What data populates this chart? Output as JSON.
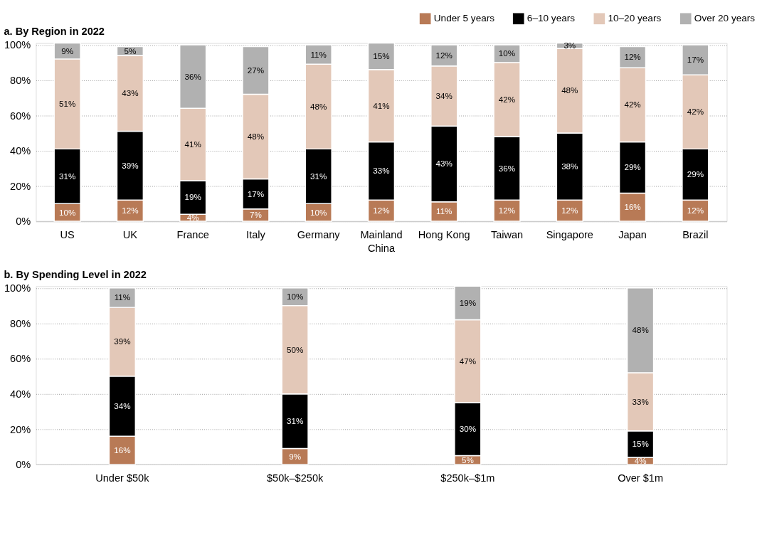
{
  "chart_data": [
    {
      "type": "bar",
      "title": "a. By Region in 2022",
      "stacked": true,
      "legend": "top right",
      "grid": "y",
      "categories": [
        "US",
        "UK",
        "France",
        "Italy",
        "Germany",
        "Mainland China",
        "Hong Kong",
        "Taiwan",
        "Singapore",
        "Japan",
        "Brazil"
      ],
      "ylim": [
        0,
        101
      ],
      "yticks": [
        {
          "value": 0,
          "label": "0%"
        },
        {
          "value": 20,
          "label": "20%"
        },
        {
          "value": 40,
          "label": "40%"
        },
        {
          "value": 60,
          "label": "60%"
        },
        {
          "value": 80,
          "label": "80%"
        },
        {
          "value": 100,
          "label": "100%"
        }
      ],
      "series": [
        {
          "name": "Under 5 years",
          "color": "#b87a56",
          "values": [
            10,
            12,
            4,
            7,
            10,
            12,
            11,
            12,
            12,
            16,
            12
          ],
          "value_labels": [
            "10%",
            "12%",
            "4%",
            "7%",
            "10%",
            "12%",
            "11%",
            "12%",
            "12%",
            "16%",
            "12%"
          ]
        },
        {
          "name": "6–10 years",
          "color": "#000000",
          "values": [
            31,
            39,
            19,
            17,
            31,
            33,
            43,
            36,
            38,
            29,
            29
          ],
          "value_labels": [
            "31%",
            "39%",
            "19%",
            "17%",
            "31%",
            "33%",
            "43%",
            "36%",
            "38%",
            "29%",
            "29%"
          ]
        },
        {
          "name": "10–20 years",
          "color": "#e3c8b8",
          "values": [
            51,
            43,
            41,
            48,
            48,
            41,
            34,
            42,
            48,
            42,
            42
          ],
          "value_labels": [
            "51%",
            "43%",
            "41%",
            "48%",
            "48%",
            "41%",
            "34%",
            "42%",
            "48%",
            "42%",
            "42%"
          ]
        },
        {
          "name": "Over 20 years",
          "color": "#b1b1b1",
          "values": [
            9,
            5,
            36,
            27,
            11,
            15,
            12,
            10,
            3,
            12,
            17
          ],
          "value_labels": [
            "9%",
            "5%",
            "36%",
            "27%",
            "11%",
            "15%",
            "12%",
            "10%",
            "3%",
            "12%",
            "17%"
          ]
        }
      ]
    },
    {
      "type": "bar",
      "title": "b. By Spending Level in 2022",
      "stacked": true,
      "grid": "y",
      "categories": [
        "Under $50k",
        "$50k–$250k",
        "$250k–$1m",
        "Over $1m"
      ],
      "ylim": [
        0,
        101
      ],
      "yticks": [
        {
          "value": 0,
          "label": "0%"
        },
        {
          "value": 20,
          "label": "20%"
        },
        {
          "value": 40,
          "label": "40%"
        },
        {
          "value": 60,
          "label": "60%"
        },
        {
          "value": 80,
          "label": "80%"
        },
        {
          "value": 100,
          "label": "100%"
        }
      ],
      "series": [
        {
          "name": "Under 5 years",
          "color": "#b87a56",
          "values": [
            16,
            9,
            5,
            4
          ],
          "value_labels": [
            "16%",
            "9%",
            "5%",
            "4%"
          ]
        },
        {
          "name": "6–10 years",
          "color": "#000000",
          "values": [
            34,
            31,
            30,
            15
          ],
          "value_labels": [
            "34%",
            "31%",
            "30%",
            "15%"
          ]
        },
        {
          "name": "10–20 years",
          "color": "#e3c8b8",
          "values": [
            39,
            50,
            47,
            33
          ],
          "value_labels": [
            "39%",
            "50%",
            "47%",
            "33%"
          ]
        },
        {
          "name": "Over 20 years",
          "color": "#b1b1b1",
          "values": [
            11,
            10,
            19,
            48
          ],
          "value_labels": [
            "11%",
            "10%",
            "19%",
            "48%"
          ]
        }
      ]
    }
  ]
}
